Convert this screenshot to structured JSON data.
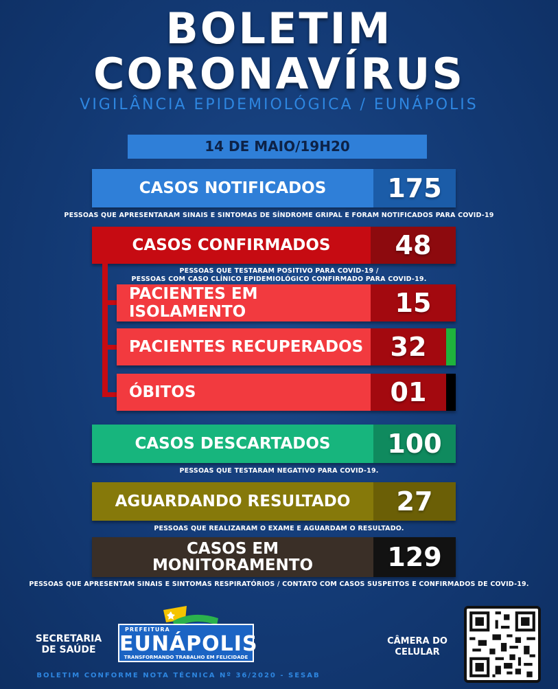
{
  "header": {
    "title_line1": "BOLETIM",
    "title_line2": "CORONAVÍRUS",
    "subtitle": "VIGILÂNCIA EPIDEMIOLÓGICA / EUNÁPOLIS"
  },
  "date": "14 DE MAIO/19H20",
  "stats": {
    "notificados": {
      "label": "CASOS NOTIFICADOS",
      "value": "175",
      "note": "PESSOAS QUE APRESENTARAM SINAIS E SINTOMAS DE SÍNDROME GRIPAL E FORAM NOTIFICADOS PARA COVID-19"
    },
    "confirmados": {
      "label": "CASOS CONFIRMADOS",
      "value": "48",
      "note_line1": "PESSOAS QUE TESTARAM POSITIVO PARA COVID-19 /",
      "note_line2": "PESSOAS COM CASO CLÍNICO EPIDEMIOLÓGICO CONFIRMADO PARA COVID-19."
    },
    "isolamento": {
      "label": "PACIENTES EM ISOLAMENTO",
      "value": "15"
    },
    "recuperados": {
      "label": "PACIENTES RECUPERADOS",
      "value": "32"
    },
    "obitos": {
      "label": "ÓBITOS",
      "value": "01"
    },
    "descartados": {
      "label": "CASOS DESCARTADOS",
      "value": "100",
      "note": "PESSOAS QUE TESTARAM NEGATIVO PARA COVID-19."
    },
    "aguardando": {
      "label": "AGUARDANDO RESULTADO",
      "value": "27",
      "note": "PESSOAS QUE REALIZARAM O EXAME E AGUARDAM O RESULTADO."
    },
    "monitoramento": {
      "label_line1": "CASOS EM",
      "label_line2": "MONITORAMENTO",
      "value": "129",
      "note": "PESSOAS QUE APRESENTAM SINAIS E SINTOMAS RESPIRATÓRIOS / CONTATO COM CASOS SUSPEITOS E CONFIRMADOS DE COVID-19."
    }
  },
  "footer": {
    "secretaria_line1": "SECRETARIA",
    "secretaria_line2": "DE SAÚDE",
    "logo_prefix": "PREFEITURA",
    "logo_name": "EUNÁPOLIS",
    "logo_slogan": "TRANSFORMANDO TRABALHO EM FELICIDADE",
    "camera_line1": "CÂMERA DO",
    "camera_line2": "CELULAR",
    "footnote": "BOLETIM CONFORME NOTA TÉCNICA Nº 36/2020 - SESAB"
  },
  "colors": {
    "background": "#133a75",
    "notificados": "#2f7fd8",
    "confirmados": "#c60b12",
    "sub_rows": "#f23a3f",
    "descartados": "#17b57d",
    "aguardando": "#86790a",
    "monitoramento": "#3a2f27",
    "recovered_tick": "#1fb33c",
    "death_tick": "#000000"
  },
  "icons": {
    "logo_emblem": "flag-emblem-icon",
    "qr": "qr-code-icon"
  }
}
